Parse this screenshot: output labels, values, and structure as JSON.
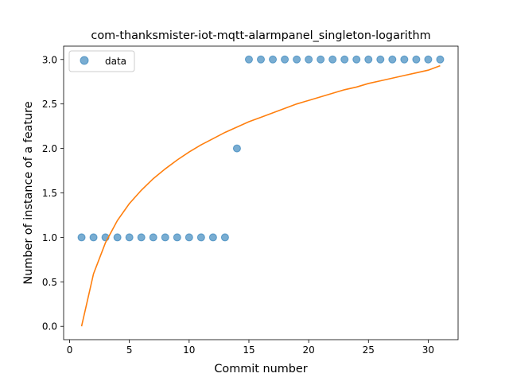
{
  "chart_data": {
    "type": "scatter",
    "title": "com-thanksmister-iot-mqtt-alarmpanel_singleton-logarithm",
    "xlabel": "Commit number",
    "ylabel": "Number of instance of a feature",
    "xlim": [
      -0.5,
      32.5
    ],
    "ylim": [
      -0.15,
      3.15
    ],
    "xticks": [
      0,
      5,
      10,
      15,
      20,
      25,
      30
    ],
    "xtick_labels": [
      "0",
      "5",
      "10",
      "15",
      "20",
      "25",
      "30"
    ],
    "yticks": [
      0.0,
      0.5,
      1.0,
      1.5,
      2.0,
      2.5,
      3.0
    ],
    "ytick_labels": [
      "0.0",
      "0.5",
      "1.0",
      "1.5",
      "2.0",
      "2.5",
      "3.0"
    ],
    "grid": false,
    "legend": {
      "placement": "top-left",
      "entries": [
        "data"
      ]
    },
    "series": [
      {
        "name": "data",
        "kind": "scatter",
        "color": "#1f77b4",
        "x": [
          1,
          2,
          3,
          4,
          5,
          6,
          7,
          8,
          9,
          10,
          11,
          12,
          13,
          14,
          15,
          16,
          17,
          18,
          19,
          20,
          21,
          22,
          23,
          24,
          25,
          26,
          27,
          28,
          29,
          30,
          31
        ],
        "y": [
          1,
          1,
          1,
          1,
          1,
          1,
          1,
          1,
          1,
          1,
          1,
          1,
          1,
          2,
          3,
          3,
          3,
          3,
          3,
          3,
          3,
          3,
          3,
          3,
          3,
          3,
          3,
          3,
          3,
          3,
          3
        ]
      },
      {
        "kind": "line",
        "color": "#ff7f0e",
        "x": [
          1,
          2,
          3,
          4,
          5,
          6,
          7,
          8,
          9,
          10,
          11,
          12,
          13,
          14,
          15,
          16,
          17,
          18,
          19,
          20,
          21,
          22,
          23,
          24,
          25,
          26,
          27,
          28,
          29,
          30,
          31
        ],
        "y": [
          0.0,
          0.59,
          0.94,
          1.19,
          1.38,
          1.53,
          1.66,
          1.77,
          1.87,
          1.96,
          2.04,
          2.11,
          2.18,
          2.24,
          2.3,
          2.35,
          2.4,
          2.45,
          2.5,
          2.54,
          2.58,
          2.62,
          2.66,
          2.69,
          2.73,
          2.76,
          2.79,
          2.82,
          2.85,
          2.88,
          2.93
        ]
      }
    ]
  }
}
